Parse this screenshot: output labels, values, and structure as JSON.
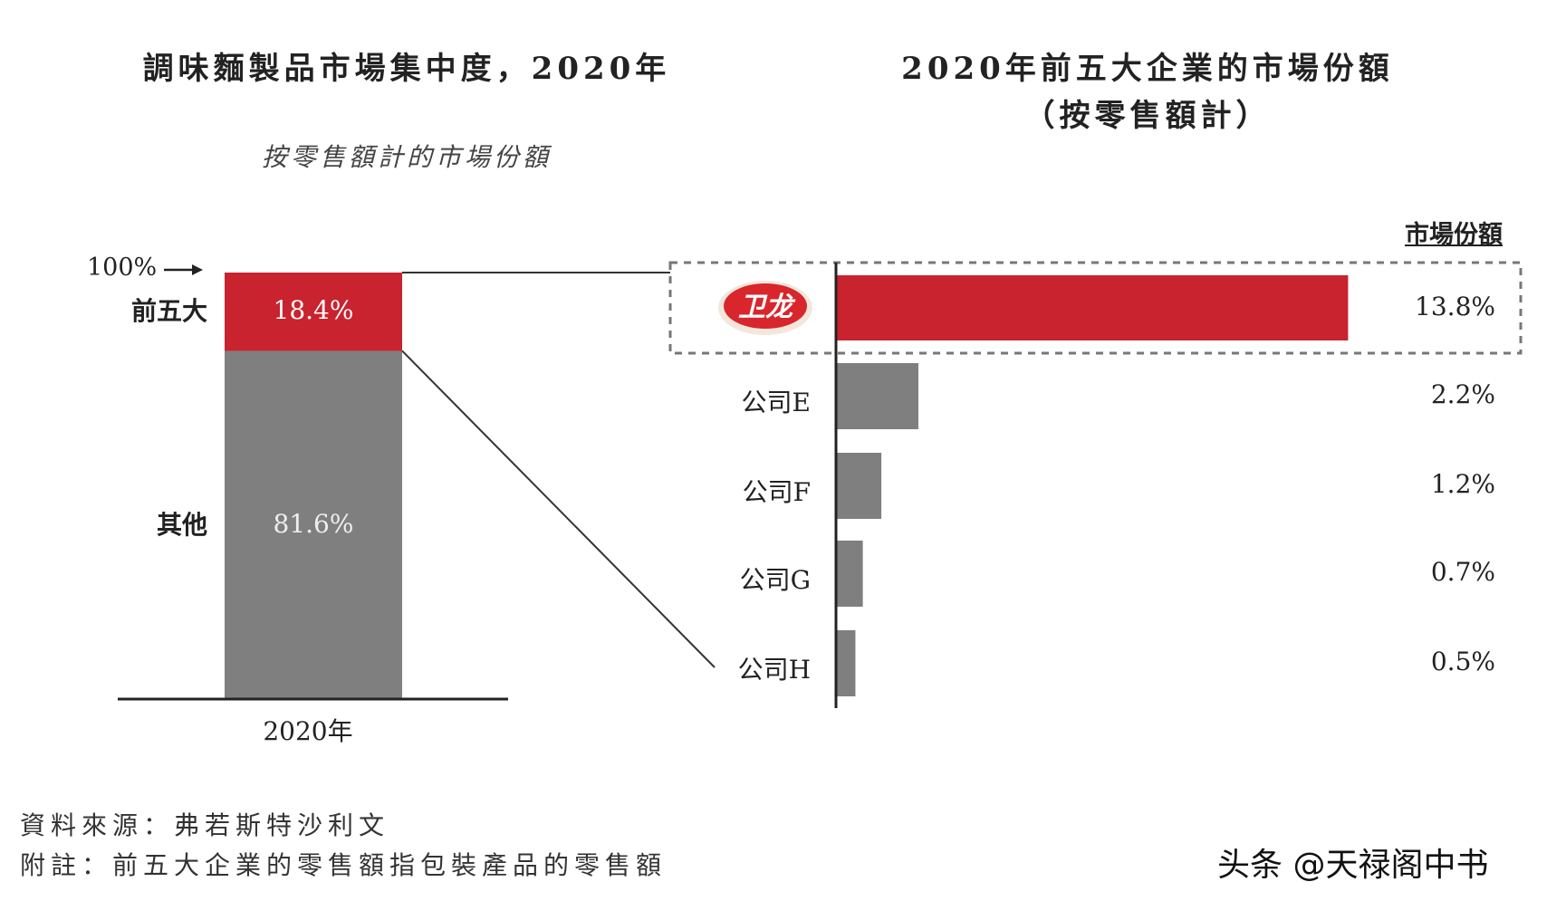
{
  "chart_data": [
    {
      "type": "bar",
      "stacked": true,
      "title": "調味麵製品市場集中度，2020年",
      "subtitle": "按零售額計的市場份額",
      "categories": [
        "2020年"
      ],
      "top_marker": "100%",
      "series": [
        {
          "name": "前五大",
          "values": [
            18.4
          ],
          "label": "18.4%",
          "color": "#c8232e"
        },
        {
          "name": "其他",
          "values": [
            81.6
          ],
          "label": "81.6%",
          "color": "#7f7f7f"
        }
      ],
      "ylim": [
        0,
        100
      ]
    },
    {
      "type": "bar",
      "orientation": "horizontal",
      "title": "2020年前五大企業的市場份額",
      "title_line2": "（按零售額計）",
      "value_header": "市場份額",
      "categories": [
        "卫龙",
        "公司E",
        "公司F",
        "公司G",
        "公司H"
      ],
      "values": [
        13.8,
        2.2,
        1.2,
        0.7,
        0.5
      ],
      "value_labels": [
        "13.8%",
        "2.2%",
        "1.2%",
        "0.7%",
        "0.5%"
      ],
      "colors": [
        "#c8232e",
        "#7f7f7f",
        "#7f7f7f",
        "#7f7f7f",
        "#7f7f7f"
      ],
      "highlight": "卫龙",
      "first_category_logo": "weilong-logo"
    }
  ],
  "footer": {
    "source": "資料來源：弗若斯特沙利文",
    "note": "附註：前五大企業的零售額指包裝產品的零售額"
  },
  "watermark": "头条 @天禄阁中书"
}
